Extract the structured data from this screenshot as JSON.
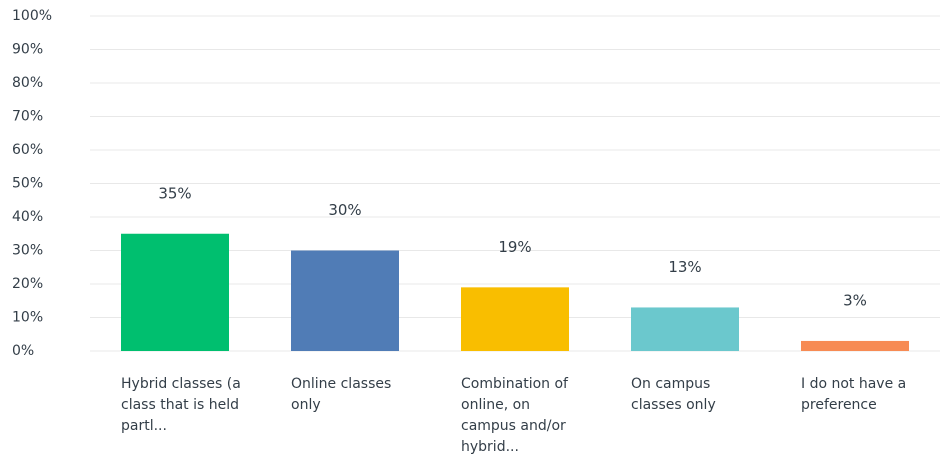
{
  "chart_data": {
    "type": "bar",
    "categories": [
      "Hybrid classes (a class that is held partl...",
      "Online classes only",
      "Combination of online, on campus and/or hybrid...",
      "On campus classes only",
      "I do not have a preference"
    ],
    "values": [
      35,
      30,
      19,
      13,
      3
    ],
    "value_labels": [
      "35%",
      "30%",
      "19%",
      "13%",
      "3%"
    ],
    "colors": [
      "#00bf6f",
      "#507cb6",
      "#f9be00",
      "#6bc8cd",
      "#f78b54"
    ],
    "ylim": [
      0,
      100
    ],
    "yticks": [
      {
        "value": 0,
        "label": "0%"
      },
      {
        "value": 10,
        "label": "10%"
      },
      {
        "value": 20,
        "label": "20%"
      },
      {
        "value": 30,
        "label": "30%"
      },
      {
        "value": 40,
        "label": "40%"
      },
      {
        "value": 50,
        "label": "50%"
      },
      {
        "value": 60,
        "label": "60%"
      },
      {
        "value": 70,
        "label": "70%"
      },
      {
        "value": 80,
        "label": "80%"
      },
      {
        "value": 90,
        "label": "90%"
      },
      {
        "value": 100,
        "label": "100%"
      }
    ],
    "grid": true
  }
}
